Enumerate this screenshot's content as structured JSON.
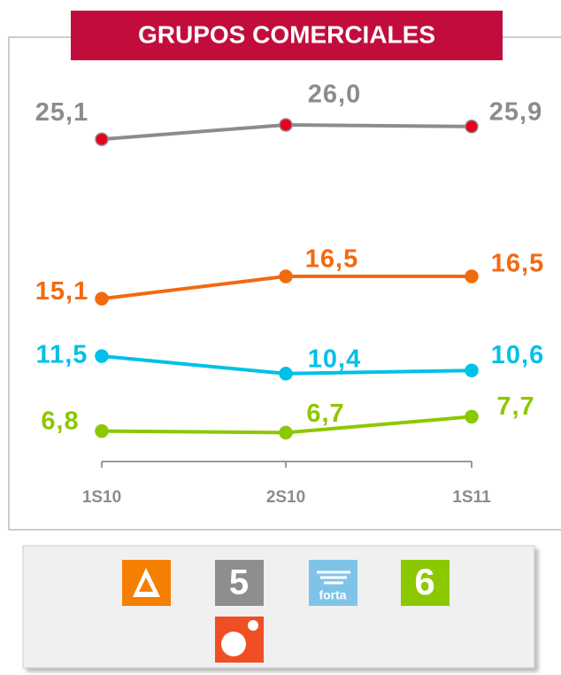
{
  "chart_data": {
    "type": "line",
    "title": "GRUPOS COMERCIALES",
    "categories": [
      "1S10",
      "2S10",
      "1S11"
    ],
    "series": [
      {
        "color": "#8c8c8c",
        "marker_color": "#e8001c",
        "values": [
          25.1,
          26.0,
          25.9
        ],
        "value_labels": [
          "25,1",
          "26,0",
          "25,9"
        ]
      },
      {
        "color": "#f26a10",
        "marker_color": "#f26a10",
        "values": [
          15.1,
          16.5,
          16.5
        ],
        "value_labels": [
          "15,1",
          "16,5",
          "16,5"
        ]
      },
      {
        "color": "#00c0e8",
        "marker_color": "#00c0e8",
        "values": [
          11.5,
          10.4,
          10.6
        ],
        "value_labels": [
          "11,5",
          "10,4",
          "10,6"
        ]
      },
      {
        "color": "#8cc800",
        "marker_color": "#8cc800",
        "values": [
          6.8,
          6.7,
          7.7
        ],
        "value_labels": [
          "6,8",
          "6,7",
          "7,7"
        ]
      }
    ]
  },
  "legend": {
    "logo_text": "forta"
  }
}
